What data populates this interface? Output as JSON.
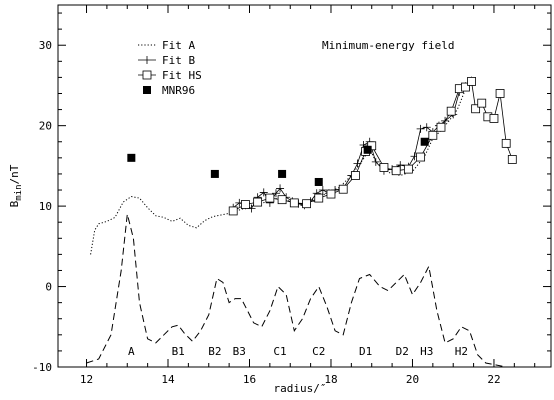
{
  "chart_data": {
    "type": "line",
    "title": "Minimum-energy field",
    "xlabel": "radius/″",
    "ylabel": "B",
    "ylabel_sub": "min",
    "ylabel_unit": "/nT",
    "xlim": [
      11.3,
      23.4
    ],
    "ylim": [
      -10,
      35
    ],
    "x_ticks": [
      12,
      14,
      16,
      18,
      20,
      22
    ],
    "y_ticks": [
      -10,
      0,
      10,
      20,
      30
    ],
    "legend": {
      "placement": "upper-left",
      "entries": [
        "Fit A",
        "Fit B",
        "Fit HS",
        "MNR96"
      ]
    },
    "series": [
      {
        "name": "Fit A",
        "style": "dotted",
        "x": [
          12.1,
          12.2,
          12.3,
          12.5,
          12.7,
          12.9,
          13.1,
          13.3,
          13.5,
          13.7,
          13.9,
          14.1,
          14.3,
          14.5,
          14.7,
          14.9,
          15.1,
          15.3,
          15.5,
          15.8,
          16.1,
          16.4,
          16.7,
          17.0,
          17.3,
          17.6,
          17.9,
          18.2,
          18.5,
          18.8,
          18.95,
          19.1,
          19.4,
          19.7,
          20.0,
          20.3,
          20.5,
          20.7,
          20.9,
          21.1,
          21.3
        ],
        "y": [
          4.0,
          7.0,
          7.8,
          8.1,
          8.6,
          10.5,
          11.2,
          11.0,
          9.8,
          8.8,
          8.6,
          8.1,
          8.5,
          7.6,
          7.3,
          8.2,
          8.7,
          8.9,
          9.1,
          9.6,
          10.1,
          10.5,
          11.0,
          10.6,
          10.2,
          10.9,
          11.6,
          12.3,
          13.8,
          15.9,
          17.2,
          15.5,
          14.2,
          13.8,
          14.3,
          16.2,
          18.4,
          19.4,
          20.6,
          22.0,
          24.5
        ]
      },
      {
        "name": "Fit B",
        "style": "solid-plus",
        "x": [
          15.6,
          15.75,
          15.9,
          16.05,
          16.2,
          16.35,
          16.5,
          16.65,
          16.75,
          16.9,
          17.05,
          17.2,
          17.35,
          17.5,
          17.65,
          17.8,
          17.95,
          18.1,
          18.3,
          18.5,
          18.65,
          18.8,
          18.95,
          19.1,
          19.3,
          19.5,
          19.7,
          19.9,
          20.05,
          20.2,
          20.35,
          20.5,
          20.65,
          20.8,
          21.0,
          21.15,
          21.3,
          21.45
        ],
        "y": [
          9.8,
          10.4,
          10.1,
          9.7,
          11.1,
          11.7,
          10.4,
          11.6,
          12.2,
          11.1,
          10.6,
          10.3,
          10.1,
          10.6,
          11.6,
          12.0,
          11.6,
          12.0,
          12.2,
          13.8,
          15.3,
          17.6,
          18.0,
          15.5,
          14.4,
          14.6,
          15.1,
          14.9,
          16.2,
          19.6,
          19.8,
          19.2,
          20.0,
          20.6,
          21.4,
          24.2,
          24.9,
          25.6
        ]
      },
      {
        "name": "Fit HS",
        "style": "solid-square",
        "x": [
          15.6,
          15.9,
          16.2,
          16.5,
          16.8,
          17.1,
          17.4,
          17.7,
          18.0,
          18.3,
          18.6,
          18.85,
          19.0,
          19.3,
          19.6,
          19.9,
          20.2,
          20.5,
          20.7,
          20.95,
          21.15,
          21.3,
          21.45,
          21.55,
          21.7,
          21.85,
          22.0,
          22.15,
          22.3,
          22.45
        ],
        "y": [
          9.4,
          10.2,
          10.5,
          11.0,
          10.8,
          10.4,
          10.3,
          11.0,
          11.5,
          12.1,
          13.8,
          16.8,
          17.5,
          14.8,
          14.4,
          14.6,
          16.1,
          18.8,
          19.8,
          21.8,
          24.6,
          24.8,
          25.5,
          22.1,
          22.8,
          21.1,
          20.9,
          24.0,
          17.8,
          15.8
        ]
      },
      {
        "name": "MNR96",
        "style": "filled-square-markers",
        "x": [
          13.1,
          15.15,
          16.8,
          17.7,
          18.9,
          20.3
        ],
        "y": [
          16.0,
          14.0,
          14.0,
          13.0,
          17.0,
          18.0
        ]
      },
      {
        "name": "",
        "style": "dashed",
        "x": [
          12.0,
          12.3,
          12.6,
          12.85,
          13.0,
          13.15,
          13.3,
          13.5,
          13.7,
          13.9,
          14.1,
          14.25,
          14.4,
          14.6,
          14.8,
          15.0,
          15.2,
          15.35,
          15.5,
          15.65,
          15.8,
          15.95,
          16.1,
          16.3,
          16.5,
          16.7,
          16.9,
          17.1,
          17.3,
          17.5,
          17.7,
          17.9,
          18.1,
          18.3,
          18.5,
          18.7,
          18.95,
          19.2,
          19.4,
          19.6,
          19.8,
          20.0,
          20.2,
          20.4,
          20.6,
          20.8,
          21.0,
          21.2,
          21.4,
          21.6,
          21.8,
          22.0,
          22.3,
          22.6,
          23.0,
          23.3
        ],
        "y": [
          -9.5,
          -9.0,
          -6.0,
          2.0,
          9.0,
          6.0,
          -2.0,
          -6.5,
          -7.0,
          -6.0,
          -5.0,
          -4.8,
          -5.8,
          -6.8,
          -5.5,
          -3.5,
          1.0,
          0.5,
          -2.0,
          -1.5,
          -1.5,
          -3.0,
          -4.5,
          -5.0,
          -3.0,
          0.0,
          -1.0,
          -5.5,
          -4.0,
          -1.5,
          0.0,
          -2.5,
          -5.5,
          -6.0,
          -2.0,
          1.0,
          1.5,
          0.0,
          -0.5,
          0.5,
          1.5,
          -1.0,
          0.5,
          2.5,
          -3.0,
          -7.0,
          -6.5,
          -5.0,
          -5.5,
          -8.5,
          -9.5,
          -9.7,
          -10.0,
          -10.0,
          -10.0,
          -10.0
        ]
      }
    ],
    "annotations": [
      {
        "text": "A",
        "x": 13.1,
        "y": -8.0
      },
      {
        "text": "B1",
        "x": 14.25,
        "y": -8.0
      },
      {
        "text": "B2",
        "x": 15.15,
        "y": -8.0
      },
      {
        "text": "B3",
        "x": 15.75,
        "y": -8.0
      },
      {
        "text": "C1",
        "x": 16.75,
        "y": -8.0
      },
      {
        "text": "C2",
        "x": 17.7,
        "y": -8.0
      },
      {
        "text": "D1",
        "x": 18.85,
        "y": -8.0
      },
      {
        "text": "D2",
        "x": 19.75,
        "y": -8.0
      },
      {
        "text": "H3",
        "x": 20.35,
        "y": -8.0
      },
      {
        "text": "H2",
        "x": 21.2,
        "y": -8.0
      }
    ]
  }
}
